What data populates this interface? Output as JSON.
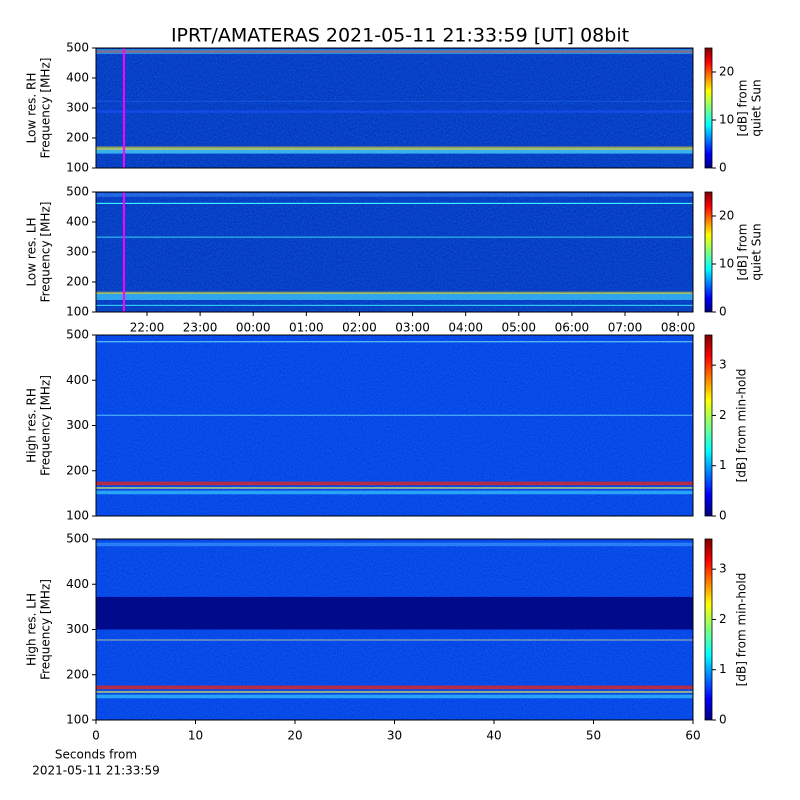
{
  "title": "IPRT/AMATERAS 2021-05-11 21:33:59 [UT]   08bit",
  "chart_data": [
    {
      "type": "heatmap",
      "ylabel": [
        "Low res. RH",
        "Frequency [MHz]"
      ],
      "ylim": [
        100,
        500
      ],
      "yticks": [
        100,
        200,
        300,
        400,
        500
      ],
      "xlim": [
        21.04,
        32.28
      ],
      "vline": 21.566,
      "vline_color": "#ff00ff",
      "colorbar": {
        "label": [
          "[dB] from",
          "quiet Sun"
        ],
        "lim": [
          0,
          25
        ],
        "ticks": [
          0,
          10,
          20
        ]
      }
    },
    {
      "type": "heatmap",
      "ylabel": [
        "Low res. LH",
        "Frequency [MHz]"
      ],
      "ylim": [
        100,
        500
      ],
      "yticks": [
        100,
        200,
        300,
        400,
        500
      ],
      "xlim": [
        21.04,
        32.28
      ],
      "vline": 21.566,
      "vline_color": "#ff00ff",
      "xticks": [
        {
          "value": 22,
          "label": "22:00"
        },
        {
          "value": 23,
          "label": "23:00"
        },
        {
          "value": 24,
          "label": "00:00"
        },
        {
          "value": 25,
          "label": "01:00"
        },
        {
          "value": 26,
          "label": "02:00"
        },
        {
          "value": 27,
          "label": "03:00"
        },
        {
          "value": 28,
          "label": "04:00"
        },
        {
          "value": 29,
          "label": "05:00"
        },
        {
          "value": 30,
          "label": "06:00"
        },
        {
          "value": 31,
          "label": "07:00"
        },
        {
          "value": 32,
          "label": "08:00"
        }
      ],
      "colorbar": {
        "label": [
          "[dB] from",
          "quiet Sun"
        ],
        "lim": [
          0,
          25
        ],
        "ticks": [
          0,
          10,
          20
        ]
      }
    },
    {
      "type": "heatmap",
      "ylabel": [
        "High res. RH",
        "Frequency [MHz]"
      ],
      "ylim": [
        100,
        500
      ],
      "yticks": [
        100,
        200,
        300,
        400,
        500
      ],
      "xlim": [
        0,
        60
      ],
      "colorbar": {
        "label": [
          "[dB] from min-hold"
        ],
        "lim": [
          0,
          3.6
        ],
        "ticks": [
          0,
          1,
          2,
          3
        ]
      }
    },
    {
      "type": "heatmap",
      "ylabel": [
        "High res. LH",
        "Frequency [MHz]"
      ],
      "ylim": [
        100,
        500
      ],
      "yticks": [
        100,
        200,
        300,
        400,
        500
      ],
      "xlim": [
        0,
        60
      ],
      "xticks": [
        0,
        10,
        20,
        30,
        40,
        50,
        60
      ],
      "xlabel": [
        "Seconds from",
        "2021-05-11 21:33:59"
      ],
      "colorbar": {
        "label": [
          "[dB] from min-hold"
        ],
        "lim": [
          0,
          3.6
        ],
        "ticks": [
          0,
          1,
          2,
          3
        ]
      }
    }
  ]
}
